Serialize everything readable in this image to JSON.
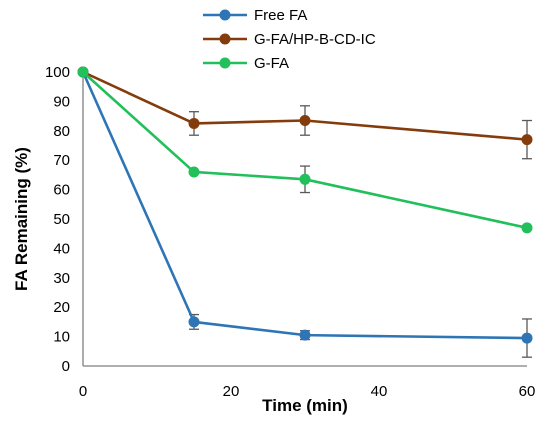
{
  "chart_data": {
    "type": "line",
    "title": "",
    "xlabel": "Time (min)",
    "ylabel": "FA Remaining (%)",
    "xlim": [
      0,
      60
    ],
    "ylim": [
      0,
      100
    ],
    "x_ticks": [
      0,
      20,
      40,
      60
    ],
    "y_ticks": [
      0,
      10,
      20,
      30,
      40,
      50,
      60,
      70,
      80,
      90,
      100
    ],
    "grid": false,
    "legend_position": "top",
    "x": [
      0,
      15,
      30,
      60
    ],
    "series": [
      {
        "name": "Free FA",
        "color": "#2e75b6",
        "values": [
          100,
          15,
          10.5,
          9.5
        ],
        "errors": [
          0,
          2.5,
          1.5,
          6.5
        ]
      },
      {
        "name": "G-FA/HP-B-CD-IC",
        "color": "#843c0c",
        "values": [
          100,
          82.5,
          83.5,
          77
        ],
        "errors": [
          0,
          4,
          5,
          6.5
        ]
      },
      {
        "name": "G-FA",
        "color": "#21c05a",
        "values": [
          100,
          66,
          63.5,
          47
        ],
        "errors": [
          0,
          0,
          4.5,
          0
        ]
      }
    ]
  }
}
